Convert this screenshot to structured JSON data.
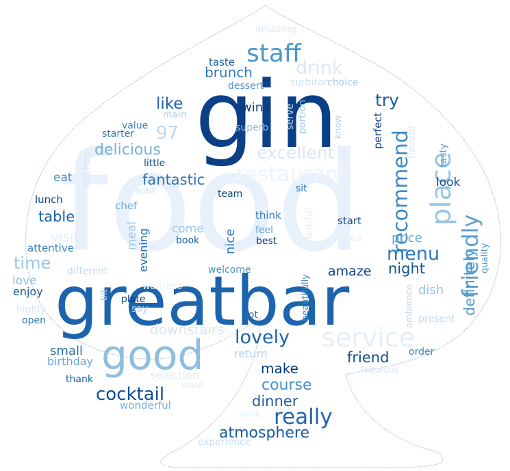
{
  "image": {
    "kind": "word-cloud",
    "mask_shape": "spade",
    "outline_color": "#b7c7d8",
    "background": "#ffffff"
  },
  "words": [
    {
      "text": "food",
      "color": "#e8f1fb"
    },
    {
      "text": "greatbar",
      "color": "#1c64ad"
    },
    {
      "text": "gin",
      "color": "#0b3f86"
    },
    {
      "text": "good",
      "color": "#8fbedf"
    },
    {
      "text": "service",
      "color": "#e6eff8"
    },
    {
      "text": "staff",
      "color": "#4b97ca"
    },
    {
      "text": "place",
      "color": "#9ac6e3"
    },
    {
      "text": "restaurant",
      "color": "#eef4fb"
    },
    {
      "text": "excellent",
      "color": "#dbe8f5"
    },
    {
      "text": "recommend",
      "color": "#3f8ac4"
    },
    {
      "text": "friendly",
      "color": "#5c9fd0"
    },
    {
      "text": "menu",
      "color": "#2c78ba"
    },
    {
      "text": "cocktail",
      "color": "#0f4e93"
    },
    {
      "text": "lovely",
      "color": "#1a63ad"
    },
    {
      "text": "really",
      "color": "#1f65ad"
    },
    {
      "text": "drink",
      "color": "#dce8f4"
    },
    {
      "text": "time",
      "color": "#9ac5e3"
    },
    {
      "text": "definitely",
      "color": "#4f97cc"
    },
    {
      "text": "atmosphere",
      "color": "#145aa3"
    },
    {
      "text": "brunch",
      "color": "#2f7bbd"
    },
    {
      "text": "delicious",
      "color": "#76b1dc"
    },
    {
      "text": "97",
      "color": "#bdd7ee"
    },
    {
      "text": "fantastic",
      "color": "#2b73b7"
    },
    {
      "text": "table",
      "color": "#1a5ea5"
    },
    {
      "text": "night",
      "color": "#10528f"
    },
    {
      "text": "friend",
      "color": "#0e4d8f"
    },
    {
      "text": "dinner",
      "color": "#1e5ea4"
    },
    {
      "text": "course",
      "color": "#4590c8"
    },
    {
      "text": "make",
      "color": "#0a3a7b"
    },
    {
      "text": "like",
      "color": "#1c62ac"
    },
    {
      "text": "try",
      "color": "#175da7"
    },
    {
      "text": "downstairs",
      "color": "#d8e6f3"
    },
    {
      "text": "amaze",
      "color": "#0b3f84"
    },
    {
      "text": "small",
      "color": "#2a6fb3"
    },
    {
      "text": "meal",
      "color": "#9ec9e5"
    },
    {
      "text": "evening",
      "color": "#1f66ad"
    },
    {
      "text": "nice",
      "color": "#2e78bb"
    },
    {
      "text": "dish",
      "color": "#99c5e3"
    },
    {
      "text": "visit",
      "color": "#e2edf8"
    },
    {
      "text": "price",
      "color": "#6aa9d7"
    },
    {
      "text": "wine",
      "color": "#0a3d7e"
    },
    {
      "text": "come",
      "color": "#9bc6e3"
    },
    {
      "text": "return",
      "color": "#b6d3eb"
    },
    {
      "text": "selection",
      "color": "#dfebf6"
    },
    {
      "text": "eat",
      "color": "#4a93c9"
    },
    {
      "text": "look",
      "color": "#0e4a8e"
    },
    {
      "text": "love",
      "color": "#8ec0e0"
    },
    {
      "text": "enjoy",
      "color": "#1a5aa2"
    },
    {
      "text": "birthday",
      "color": "#6aa7d5"
    },
    {
      "text": "amazing",
      "color": "#dde9f5"
    },
    {
      "text": "taste",
      "color": "#1e5fa5"
    },
    {
      "text": "dessert",
      "color": "#4b8fc7"
    },
    {
      "text": "surbiton",
      "color": "#cfe1f1"
    },
    {
      "text": "choice",
      "color": "#a9cde8"
    },
    {
      "text": "main",
      "color": "#b5d2ea"
    },
    {
      "text": "value",
      "color": "#3c83c1"
    },
    {
      "text": "starter",
      "color": "#2f77b9"
    },
    {
      "text": "superb",
      "color": "#8dbde0"
    },
    {
      "text": "serve",
      "color": "#c7dcef"
    },
    {
      "text": "portion",
      "color": "#a0c8e5"
    },
    {
      "text": "know",
      "color": "#b9d6ec"
    },
    {
      "text": "perfect",
      "color": "#0b3e80"
    },
    {
      "text": "flavour",
      "color": "#dbe8f5"
    },
    {
      "text": "tasty",
      "color": "#5f9fd0"
    },
    {
      "text": "kitchen",
      "color": "#d4e5f3"
    },
    {
      "text": "little",
      "color": "#0f4c92"
    },
    {
      "text": "wait",
      "color": "#d6e6f4"
    },
    {
      "text": "team",
      "color": "#0d4689"
    },
    {
      "text": "sit",
      "color": "#2d76b8"
    },
    {
      "text": "lunch",
      "color": "#0c4386"
    },
    {
      "text": "chef",
      "color": "#6aa8d6"
    },
    {
      "text": "think",
      "color": "#3779b7"
    },
    {
      "text": "feel",
      "color": "#5f9fd0"
    },
    {
      "text": "best",
      "color": "#0a3a7a"
    },
    {
      "text": "book",
      "color": "#1a60a8"
    },
    {
      "text": "helpful",
      "color": "#e6eff8"
    },
    {
      "text": "area",
      "color": "#e3edf7"
    },
    {
      "text": "start",
      "color": "#0d4a8c"
    },
    {
      "text": "attentive",
      "color": "#3881c0"
    },
    {
      "text": "waitress",
      "color": "#e7f0f9"
    },
    {
      "text": "different",
      "color": "#c0d9ee"
    },
    {
      "text": "welcome",
      "color": "#4a92c8"
    },
    {
      "text": "quality",
      "color": "#4d92c9"
    },
    {
      "text": "ambience",
      "color": "#c3daee"
    },
    {
      "text": "plate",
      "color": "#0b3d7e"
    },
    {
      "text": "highly",
      "color": "#d7e6f4"
    },
    {
      "text": "bit",
      "color": "#b3d1ea"
    },
    {
      "text": "say",
      "color": "#b8d4eb"
    },
    {
      "text": "lot",
      "color": "#2b70b3"
    },
    {
      "text": "beautifully",
      "color": "#3f89c3"
    },
    {
      "text": "present",
      "color": "#c2d9ee"
    },
    {
      "text": "open",
      "color": "#2d74b7"
    },
    {
      "text": "order",
      "color": "#3e85c2"
    },
    {
      "text": "fabulous",
      "color": "#d9e7f5"
    },
    {
      "text": "thank",
      "color": "#1c5fa6"
    },
    {
      "text": "want",
      "color": "#e4eef8"
    },
    {
      "text": "wonderful",
      "color": "#77b1dc"
    },
    {
      "text": "work",
      "color": "#e7f0f9"
    },
    {
      "text": "experience",
      "color": "#c9def0"
    }
  ]
}
